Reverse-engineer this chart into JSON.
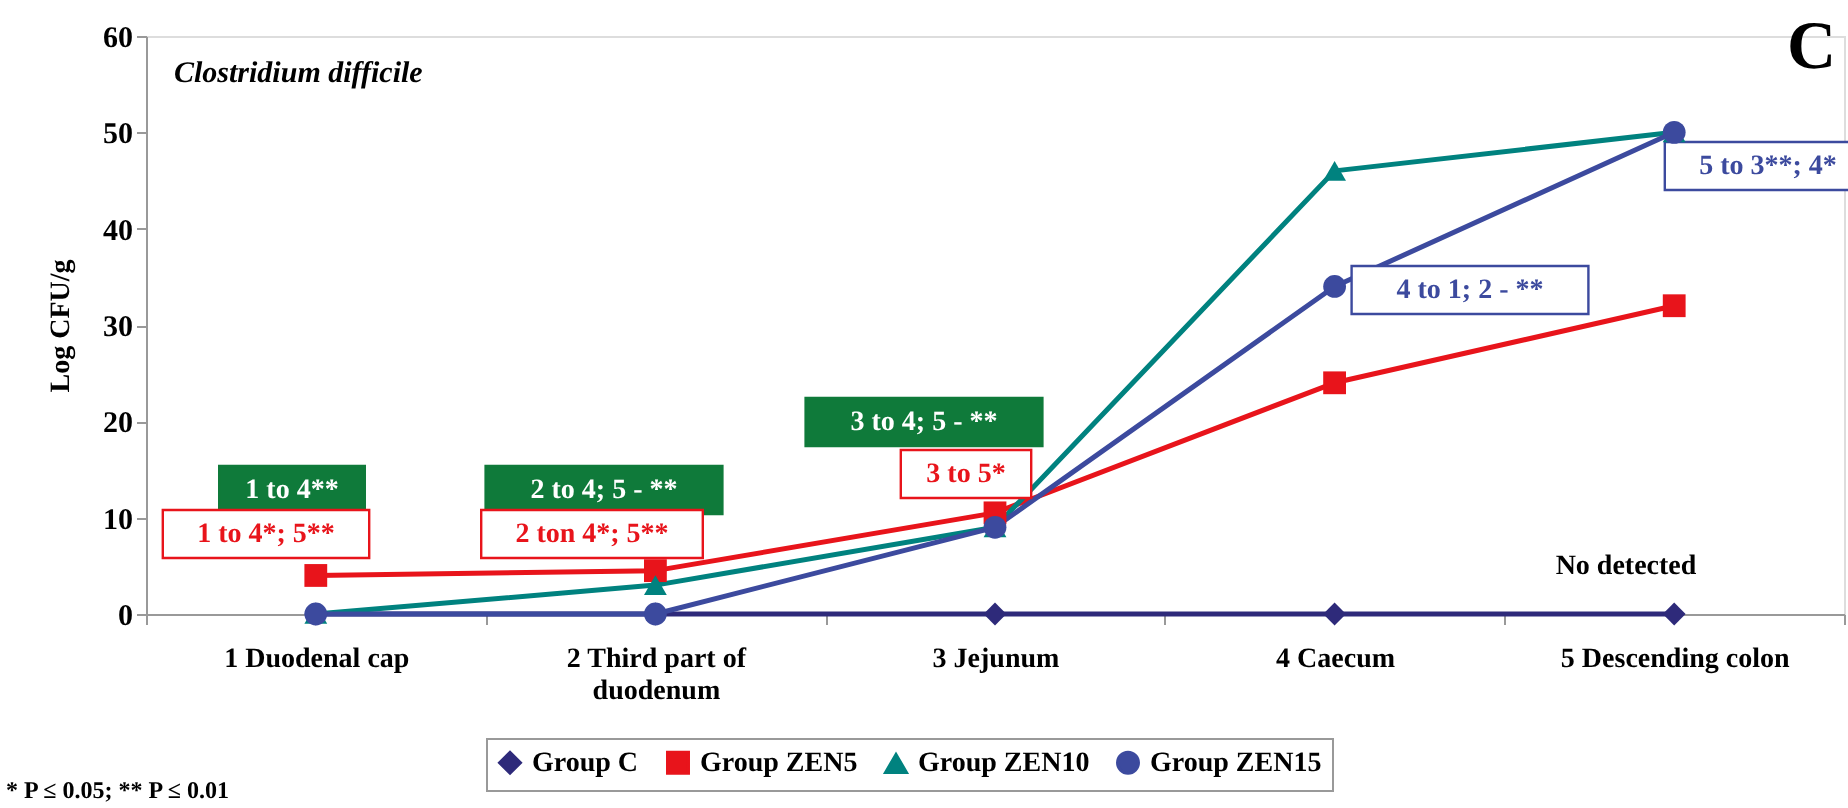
{
  "chart_data": {
    "type": "line",
    "title": "C",
    "subtitle": "Clostridium difficile",
    "ylabel": "Log CFU/g",
    "categories": [
      "1 Duodenal cap",
      "2 Third part of\nduodenum",
      "3 Jejunum",
      "4 Caecum",
      "5 Descending colon"
    ],
    "series": [
      {
        "name": "Group C",
        "color": "#2e2a7a",
        "marker": "diamond",
        "values": [
          0,
          0,
          0,
          0,
          0
        ]
      },
      {
        "name": "Group ZEN5",
        "color": "#e8141b",
        "marker": "square",
        "values": [
          4,
          4.5,
          10.5,
          24,
          32
        ]
      },
      {
        "name": "Group ZEN10",
        "color": "#00827f",
        "marker": "triangle",
        "values": [
          0,
          3,
          9,
          46,
          50
        ]
      },
      {
        "name": "Group ZEN15",
        "color": "#3c4a9e",
        "marker": "circle",
        "values": [
          0,
          0,
          9,
          34,
          50
        ]
      }
    ],
    "ylim": [
      0,
      60
    ],
    "yticks": [
      0,
      10,
      20,
      30,
      40,
      50,
      60
    ],
    "grid": false,
    "legend": "bottom",
    "line_style": "solid",
    "annotations": [
      "1 to 4**",
      "1 to 4*; 5**",
      "2 to 4; 5 - **",
      "2 ton 4*; 5**",
      "3 to 4; 5 - **",
      "3 to 5*",
      "4 to 1; 2 - **",
      "5 to 3**; 4*",
      "No detected",
      "* P ≤ 0.05; ** P ≤ 0.01"
    ]
  }
}
